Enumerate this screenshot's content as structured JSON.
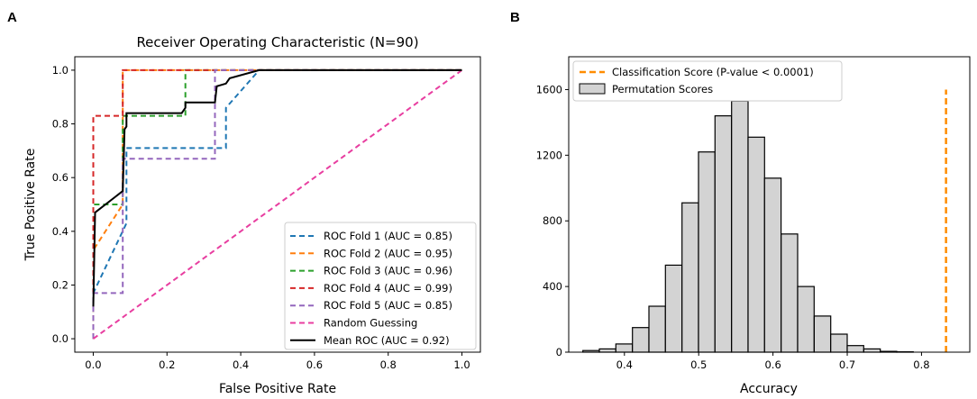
{
  "chart_data": [
    {
      "panel": "A",
      "type": "line",
      "title": "Receiver Operating Characteristic (N=90)",
      "xlabel": "False Positive Rate",
      "ylabel": "True Positive Rate",
      "xlim": [
        -0.05,
        1.05
      ],
      "ylim": [
        -0.05,
        1.05
      ],
      "xticks": [
        "0.0",
        "0.2",
        "0.4",
        "0.6",
        "0.8",
        "1.0"
      ],
      "yticks": [
        "0.0",
        "0.2",
        "0.4",
        "0.6",
        "0.8",
        "1.0"
      ],
      "legend_position": "lower-right",
      "series": [
        {
          "name": "ROC Fold 1 (AUC = 0.85)",
          "color": "#1f77b4",
          "style": "dashed",
          "x": [
            0,
            0,
            0.09,
            0.09,
            0.36,
            0.36,
            0.45,
            1
          ],
          "y": [
            0,
            0.17,
            0.43,
            0.71,
            0.71,
            0.86,
            1,
            1
          ]
        },
        {
          "name": "ROC Fold 2 (AUC = 0.95)",
          "color": "#ff7f0e",
          "style": "dashed",
          "x": [
            0,
            0,
            0.08,
            0.08,
            1
          ],
          "y": [
            0,
            0.33,
            0.5,
            1,
            1
          ]
        },
        {
          "name": "ROC Fold 3 (AUC = 0.96)",
          "color": "#2ca02c",
          "style": "dashed",
          "x": [
            0,
            0,
            0.08,
            0.08,
            0.25,
            0.25,
            1
          ],
          "y": [
            0,
            0.5,
            0.5,
            0.83,
            0.83,
            1,
            1
          ]
        },
        {
          "name": "ROC Fold 4 (AUC = 0.99)",
          "color": "#d62728",
          "style": "dashed",
          "x": [
            0,
            0,
            0.08,
            0.08,
            1
          ],
          "y": [
            0,
            0.83,
            0.83,
            1,
            1
          ]
        },
        {
          "name": "ROC Fold 5 (AUC = 0.85)",
          "color": "#9467bd",
          "style": "dashed",
          "x": [
            0,
            0,
            0.08,
            0.08,
            0.33,
            0.33,
            1
          ],
          "y": [
            0,
            0.17,
            0.17,
            0.67,
            0.67,
            1,
            1
          ]
        },
        {
          "name": "Random Guessing",
          "color": "#e83ea0",
          "style": "dashed",
          "x": [
            0,
            1
          ],
          "y": [
            0,
            1
          ]
        },
        {
          "name": "Mean ROC (AUC = 0.92)",
          "color": "#000000",
          "style": "solid",
          "x": [
            0,
            0.005,
            0.005,
            0.08,
            0.085,
            0.09,
            0.09,
            0.1,
            0.24,
            0.25,
            0.25,
            0.33,
            0.335,
            0.36,
            0.37,
            0.45,
            1.0
          ],
          "y": [
            0.12,
            0.47,
            0.47,
            0.55,
            0.78,
            0.79,
            0.84,
            0.84,
            0.84,
            0.86,
            0.88,
            0.88,
            0.94,
            0.95,
            0.97,
            1.0,
            1.0
          ]
        }
      ]
    },
    {
      "panel": "B",
      "type": "bar",
      "xlabel": "Accuracy",
      "ylabel": "",
      "xlim": [
        0.325,
        0.865
      ],
      "ylim": [
        0,
        1800
      ],
      "xticks": [
        "0.4",
        "0.5",
        "0.6",
        "0.7",
        "0.8"
      ],
      "yticks": [
        "0",
        "400",
        "800",
        "1200",
        "1600"
      ],
      "legend_position": "upper-left",
      "histogram": {
        "name": "Permutation Scores",
        "color": "#d3d3d3",
        "edge_color": "#000000",
        "bin_start": 0.344,
        "bin_width": 0.02225,
        "counts": [
          10,
          20,
          50,
          150,
          280,
          530,
          910,
          1220,
          1440,
          1530,
          1310,
          1060,
          720,
          400,
          220,
          110,
          40,
          20,
          5,
          2
        ]
      },
      "classification_line": {
        "name": "Classification Score (P-value < 0.0001)",
        "color": "#ff8c00",
        "x": 0.833,
        "y": [
          0,
          1600
        ]
      }
    }
  ],
  "panels": {
    "a": {
      "letter": "A"
    },
    "b": {
      "letter": "B"
    }
  }
}
